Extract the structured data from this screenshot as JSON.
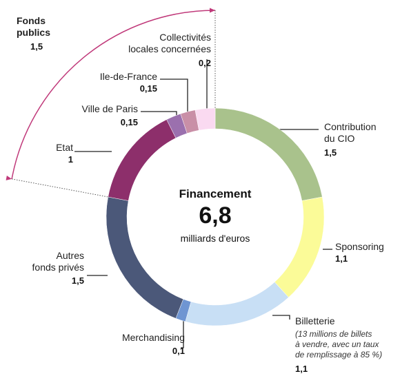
{
  "chart_data": {
    "type": "donut",
    "center_title": "Financement",
    "total": 6.8,
    "total_label": "6,8",
    "unit": "milliards d'euros",
    "categories": [
      "Contribution\ndu CIO",
      "Sponsoring",
      "Billetterie",
      "Merchandising",
      "Autres\nfonds privés",
      "Etat",
      "Ville de Paris",
      "Ile-de-France",
      "Collectivités\nlocales concernées"
    ],
    "values": [
      1.5,
      1.1,
      1.1,
      0.1,
      1.5,
      1,
      0.15,
      0.15,
      0.2
    ],
    "value_labels": [
      "1,5",
      "1,1",
      "1,1",
      "0,1",
      "1,5",
      "1",
      "0,15",
      "0,15",
      "0,2"
    ],
    "colors": [
      "#a9c28c",
      "#fbfb98",
      "#c8dff5",
      "#6f95d2",
      "#4b5879",
      "#8d2f6b",
      "#9b70ae",
      "#c98fa7",
      "#fadaf1"
    ],
    "annotations": [
      "(13 millions de billets\nà vendre, avec un taux\nde remplissage à 85 %)"
    ],
    "group": {
      "name": "Fonds\npublics",
      "value": 1.5,
      "value_label": "1,5",
      "color": "#c0397a"
    }
  }
}
